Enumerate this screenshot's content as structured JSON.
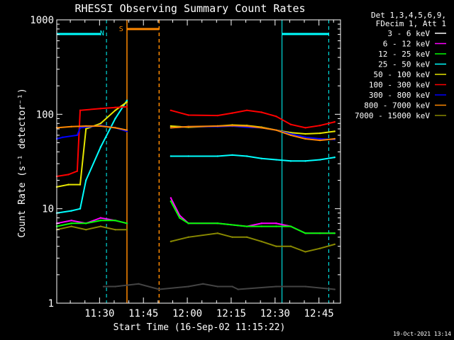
{
  "chart_data": {
    "type": "line",
    "title": "RHESSI Observing Summary Count Rates",
    "xlabel": "Start Time (16-Sep-02 11:15:22)",
    "ylabel": "Count Rate (s⁻¹ detector⁻¹)",
    "yscale": "log",
    "ylim": [
      1,
      1000
    ],
    "xlim_minutes_after_11_15_22": [
      0,
      97
    ],
    "x_ticks": [
      "11:30",
      "11:45",
      "12:00",
      "12:15",
      "12:30",
      "12:45"
    ],
    "y_ticks": [
      "1",
      "10",
      "100",
      "1000"
    ],
    "grid": false,
    "legend": {
      "placement": "outside-right",
      "header": [
        "Det 1,3,4,5,6,9,",
        "FDecim 1, Att 1"
      ],
      "entries": [
        {
          "label": "3 - 6 keV",
          "color": "#000000"
        },
        {
          "label": "6 - 12 keV",
          "color": "#ff00ff"
        },
        {
          "label": "12 - 25 keV",
          "color": "#00ff00"
        },
        {
          "label": "25 - 50 keV",
          "color": "#00ffff"
        },
        {
          "label": "50 - 100 keV",
          "color": "#e6e600"
        },
        {
          "label": "100 - 300 keV",
          "color": "#ff0000"
        },
        {
          "label": "300 - 800 keV",
          "color": "#0000ff"
        },
        {
          "label": "800 - 7000 keV",
          "color": "#ff8800"
        },
        {
          "label": "7000 - 15000 keV",
          "color": "#888800"
        }
      ]
    },
    "flag_markers": [
      {
        "label": "N",
        "color": "#00ffff"
      },
      {
        "label": "S",
        "color": "#ff8800"
      }
    ],
    "series": [
      {
        "name": "3 - 6 keV",
        "color": "#000000",
        "x": [
          16,
          20,
          28,
          35,
          45,
          50,
          55,
          60,
          62,
          75,
          85,
          95
        ],
        "y": [
          1.5,
          1.5,
          1.6,
          1.4,
          1.5,
          1.6,
          1.5,
          1.5,
          1.4,
          1.5,
          1.5,
          1.4
        ]
      },
      {
        "name": "6 - 12 keV",
        "color": "#ff00ff",
        "x": [
          0,
          5,
          10,
          15,
          20,
          24,
          39,
          42,
          45,
          55,
          65,
          70,
          75,
          80,
          85,
          90,
          95
        ],
        "y": [
          7,
          7.5,
          7,
          8,
          7.5,
          7,
          13,
          8.5,
          7,
          7,
          6.5,
          7,
          7,
          6.5,
          5.5,
          5.5,
          5.5
        ]
      },
      {
        "name": "12 - 25 keV",
        "color": "#00ff00",
        "x": [
          0,
          5,
          10,
          15,
          20,
          24,
          39,
          42,
          45,
          55,
          65,
          70,
          75,
          80,
          85,
          90,
          95
        ],
        "y": [
          6.5,
          7,
          7,
          7.5,
          7.5,
          7,
          12,
          8,
          7,
          7,
          6.5,
          6.5,
          6.5,
          6.5,
          5.5,
          5.5,
          5.5
        ]
      },
      {
        "name": "25 - 50 keV",
        "color": "#00ffff",
        "x": [
          0,
          5,
          8,
          10,
          15,
          20,
          24,
          39,
          45,
          55,
          60,
          65,
          70,
          75,
          80,
          85,
          90,
          95
        ],
        "y": [
          9,
          9.5,
          10,
          20,
          45,
          90,
          140,
          36,
          36,
          36,
          37,
          36,
          34,
          33,
          32,
          32,
          33,
          35
        ]
      },
      {
        "name": "50 - 100 keV",
        "color": "#e6e600",
        "x": [
          0,
          4,
          8,
          10,
          15,
          20,
          24,
          39,
          45,
          55,
          60,
          65,
          70,
          75,
          80,
          85,
          90,
          95
        ],
        "y": [
          17,
          18,
          18,
          70,
          80,
          110,
          135,
          75,
          73,
          75,
          77,
          76,
          73,
          68,
          64,
          62,
          63,
          66
        ]
      },
      {
        "name": "100 - 300 keV",
        "color": "#ff0000",
        "x": [
          0,
          4,
          7,
          8,
          15,
          20,
          24,
          39,
          45,
          55,
          60,
          65,
          70,
          75,
          80,
          85,
          90,
          95
        ],
        "y": [
          22,
          23,
          25,
          110,
          115,
          118,
          120,
          110,
          98,
          97,
          103,
          110,
          105,
          95,
          78,
          72,
          76,
          83
        ]
      },
      {
        "name": "300 - 800 keV",
        "color": "#0000ff",
        "x": [
          0,
          2,
          7,
          8,
          15,
          20,
          24,
          39,
          45,
          55,
          60,
          65,
          70,
          75,
          80,
          85,
          90,
          95
        ],
        "y": [
          55,
          57,
          60,
          72,
          76,
          72,
          66,
          72,
          74,
          74,
          75,
          73,
          72,
          68,
          62,
          57,
          55,
          54
        ]
      },
      {
        "name": "800 - 7000 keV",
        "color": "#ff8800",
        "x": [
          0,
          5,
          10,
          15,
          20,
          24,
          39,
          45,
          55,
          60,
          65,
          70,
          75,
          80,
          85,
          90,
          95
        ],
        "y": [
          72,
          74,
          75,
          75,
          72,
          68,
          72,
          74,
          75,
          76,
          75,
          72,
          68,
          60,
          55,
          53,
          55
        ]
      },
      {
        "name": "7000 - 15000 keV",
        "color": "#888800",
        "x": [
          0,
          5,
          10,
          15,
          20,
          24,
          39,
          45,
          55,
          60,
          65,
          70,
          75,
          80,
          85,
          90,
          95
        ],
        "y": [
          6,
          6.5,
          6,
          6.5,
          6,
          6,
          4.5,
          5,
          5.5,
          5,
          5,
          4.5,
          4,
          4,
          3.5,
          3.8,
          4.2
        ]
      }
    ]
  },
  "footer": {
    "timestamp": "19-Oct-2021 13:14"
  }
}
